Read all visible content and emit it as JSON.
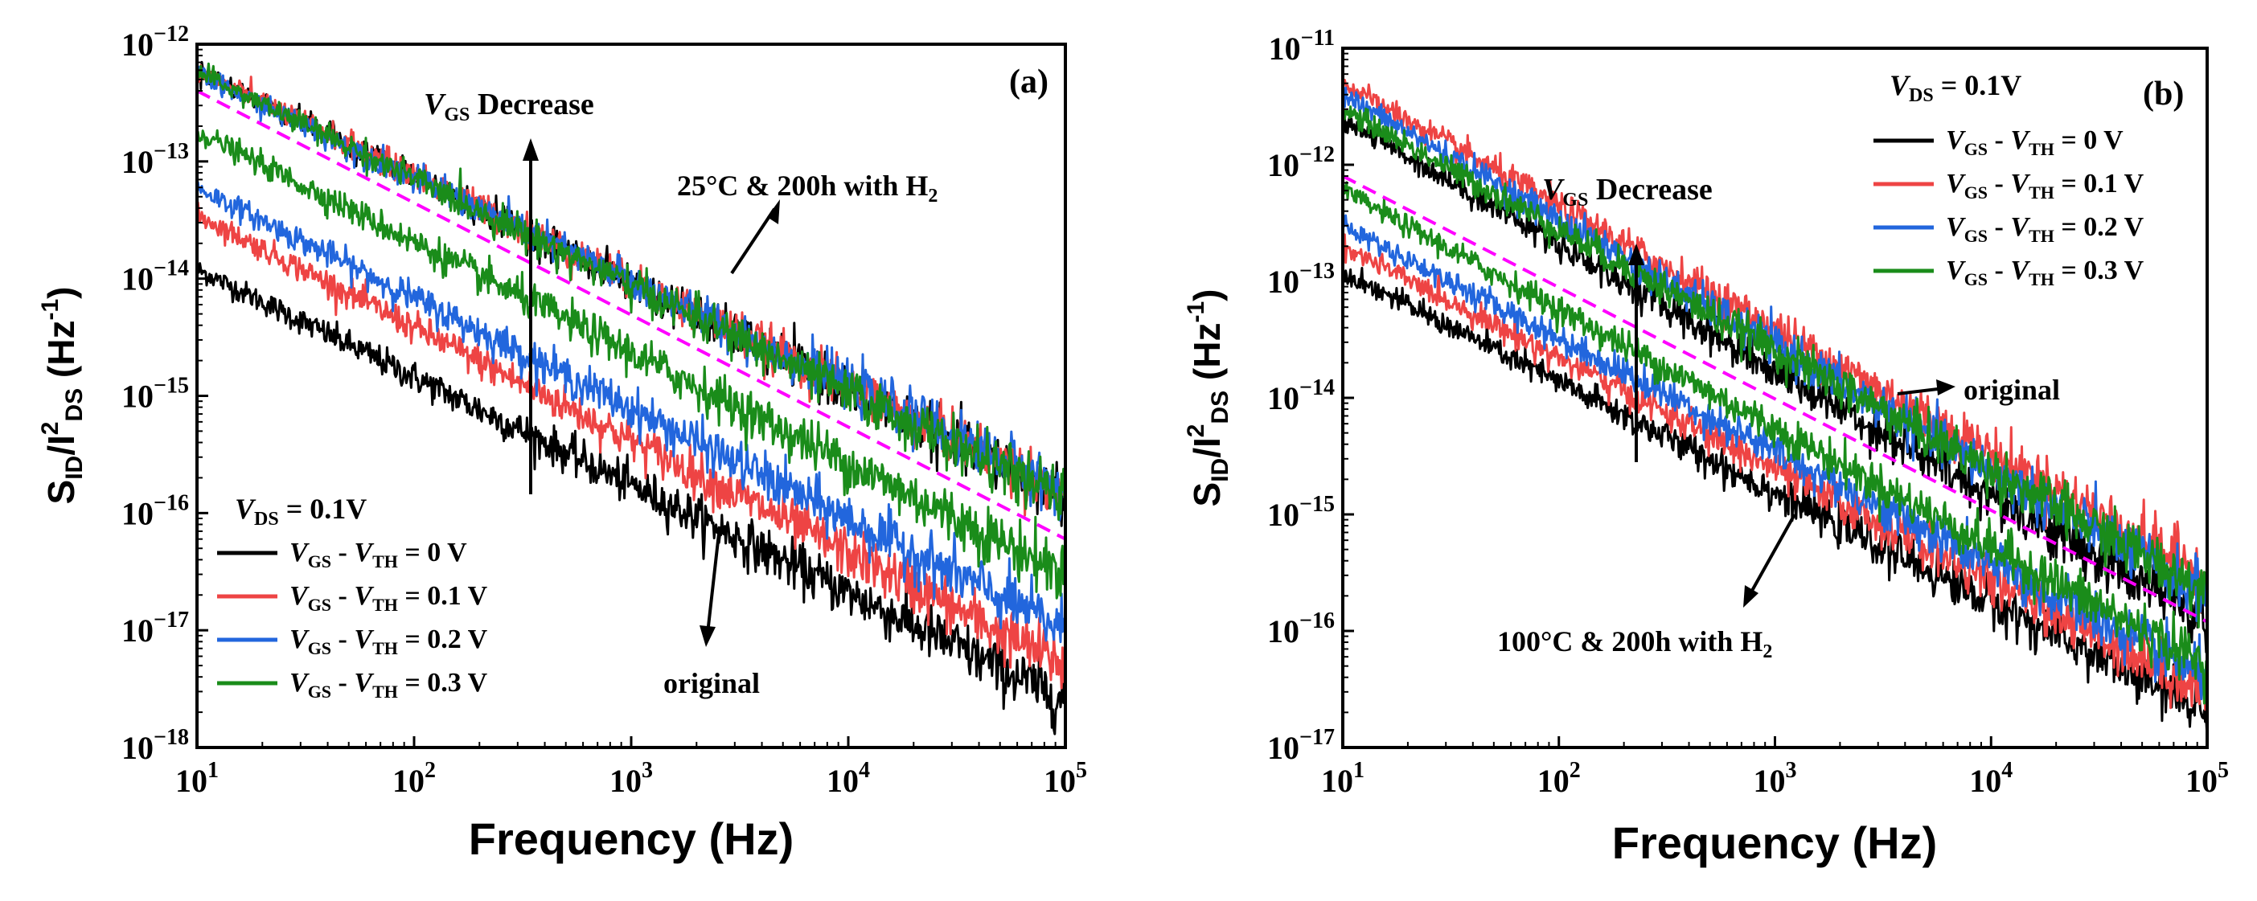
{
  "chart_data": [
    {
      "type": "line",
      "panel_label": "(a)",
      "xlabel": "Frequency (Hz)",
      "ylabel": {
        "main": "S",
        "sub1": "ID",
        "slash": "/I",
        "sup2": "2",
        "sub2": "DS",
        "unit_open": " (Hz",
        "unit_sup": "-1",
        "unit_close": ")"
      },
      "xscale": "log",
      "yscale": "log",
      "xlim": [
        10,
        100000
      ],
      "ylim": [
        1e-18,
        1e-12
      ],
      "xticks": [
        {
          "base": "10",
          "exp": "1",
          "value": 10
        },
        {
          "base": "10",
          "exp": "2",
          "value": 100
        },
        {
          "base": "10",
          "exp": "3",
          "value": 1000
        },
        {
          "base": "10",
          "exp": "4",
          "value": 10000
        },
        {
          "base": "10",
          "exp": "5",
          "value": 100000
        }
      ],
      "yticks": [
        {
          "base": "10",
          "exp": "−18",
          "value": 1e-18
        },
        {
          "base": "10",
          "exp": "−17",
          "value": 1e-17
        },
        {
          "base": "10",
          "exp": "−16",
          "value": 1e-16
        },
        {
          "base": "10",
          "exp": "−15",
          "value": 1e-15
        },
        {
          "base": "10",
          "exp": "−14",
          "value": 1e-14
        },
        {
          "base": "10",
          "exp": "−13",
          "value": 1e-13
        },
        {
          "base": "10",
          "exp": "−12",
          "value": 1e-12
        }
      ],
      "series_original": [
        {
          "name": "VGS - VTH = 0 V",
          "color": "#000000",
          "start": 1.2e-14,
          "end": 2.5e-18
        },
        {
          "name": "VGS - VTH = 0.1 V",
          "color": "#ee4444",
          "start": 3.5e-14,
          "end": 5e-18
        },
        {
          "name": "VGS - VTH = 0.2 V",
          "color": "#2266dd",
          "start": 6e-14,
          "end": 1e-17
        },
        {
          "name": "VGS - VTH = 0.3 V",
          "color": "#1a8c1a",
          "start": 1.8e-13,
          "end": 3e-17
        }
      ],
      "series_stressed": [
        {
          "name": "VGS - VTH = 0 V",
          "color": "#000000",
          "start": 6e-13,
          "end": 1.4e-16
        },
        {
          "name": "VGS - VTH = 0.1 V",
          "color": "#ee4444",
          "start": 6e-13,
          "end": 1.5e-16
        },
        {
          "name": "VGS - VTH = 0.2 V",
          "color": "#2266dd",
          "start": 5.5e-13,
          "end": 1.6e-16
        },
        {
          "name": "VGS - VTH = 0.3 V",
          "color": "#1a8c1a",
          "start": 5.8e-13,
          "end": 1.3e-16
        }
      ],
      "reference_line": {
        "color": "#ff00ff",
        "start": 4e-13,
        "end": 6e-17
      },
      "legend_title": {
        "v": "V",
        "sub": "DS",
        "rest": " = 0.1V"
      },
      "legend": [
        {
          "v1": "V",
          "s1": "GS",
          "mid": " - ",
          "v2": "V",
          "s2": "TH",
          "val": " = 0 V",
          "color": "#000000"
        },
        {
          "v1": "V",
          "s1": "GS",
          "mid": " - ",
          "v2": "V",
          "s2": "TH",
          "val": " = 0.1 V",
          "color": "#ee4444"
        },
        {
          "v1": "V",
          "s1": "GS",
          "mid": " - ",
          "v2": "V",
          "s2": "TH",
          "val": " = 0.2 V",
          "color": "#2266dd"
        },
        {
          "v1": "V",
          "s1": "GS",
          "mid": " - ",
          "v2": "V",
          "s2": "TH",
          "val": " = 0.3 V",
          "color": "#1a8c1a"
        }
      ],
      "annotations": {
        "vgs_decrease": {
          "v": "V",
          "sub": "GS",
          "rest": " Decrease"
        },
        "stress": {
          "text": "25°C & 200h with H",
          "sub": "2"
        },
        "original": "original"
      }
    },
    {
      "type": "line",
      "panel_label": "(b)",
      "xlabel": "Frequency (Hz)",
      "ylabel": {
        "main": "S",
        "sub1": "ID",
        "slash": "/I",
        "sup2": "2",
        "sub2": "DS",
        "unit_open": " (Hz",
        "unit_sup": "-1",
        "unit_close": ")"
      },
      "xscale": "log",
      "yscale": "log",
      "xlim": [
        10,
        100000
      ],
      "ylim": [
        1e-17,
        1e-11
      ],
      "xticks": [
        {
          "base": "10",
          "exp": "1",
          "value": 10
        },
        {
          "base": "10",
          "exp": "2",
          "value": 100
        },
        {
          "base": "10",
          "exp": "3",
          "value": 1000
        },
        {
          "base": "10",
          "exp": "4",
          "value": 10000
        },
        {
          "base": "10",
          "exp": "5",
          "value": 100000
        }
      ],
      "yticks": [
        {
          "base": "10",
          "exp": "−17",
          "value": 1e-17
        },
        {
          "base": "10",
          "exp": "−16",
          "value": 1e-16
        },
        {
          "base": "10",
          "exp": "−15",
          "value": 1e-15
        },
        {
          "base": "10",
          "exp": "−14",
          "value": 1e-14
        },
        {
          "base": "10",
          "exp": "−13",
          "value": 1e-13
        },
        {
          "base": "10",
          "exp": "−12",
          "value": 1e-12
        },
        {
          "base": "10",
          "exp": "−11",
          "value": 1e-11
        }
      ],
      "series_original": [
        {
          "name": "VGS - VTH = 0 V",
          "color": "#000000",
          "start": 2.5e-12,
          "end": 1.2e-16
        },
        {
          "name": "VGS - VTH = 0.1 V",
          "color": "#ee4444",
          "start": 5e-12,
          "end": 3e-16
        },
        {
          "name": "VGS - VTH = 0.2 V",
          "color": "#2266dd",
          "start": 4e-12,
          "end": 2e-16
        },
        {
          "name": "VGS - VTH = 0.3 V",
          "color": "#1a8c1a",
          "start": 3e-12,
          "end": 2.2e-16
        }
      ],
      "series_stressed": [
        {
          "name": "VGS - VTH = 0 V",
          "color": "#000000",
          "start": 1.2e-13,
          "end": 2e-17
        },
        {
          "name": "VGS - VTH = 0.1 V",
          "color": "#ee4444",
          "start": 2e-13,
          "end": 3e-17
        },
        {
          "name": "VGS - VTH = 0.2 V",
          "color": "#2266dd",
          "start": 3e-13,
          "end": 4e-17
        },
        {
          "name": "VGS - VTH = 0.3 V",
          "color": "#1a8c1a",
          "start": 6e-13,
          "end": 5e-17
        }
      ],
      "reference_line": {
        "color": "#ff00ff",
        "start": 8e-13,
        "end": 1.2e-16
      },
      "legend_title": {
        "v": "V",
        "sub": "DS",
        "rest": " = 0.1V"
      },
      "legend": [
        {
          "v1": "V",
          "s1": "GS",
          "mid": " - ",
          "v2": "V",
          "s2": "TH",
          "val": " = 0 V",
          "color": "#000000"
        },
        {
          "v1": "V",
          "s1": "GS",
          "mid": " - ",
          "v2": "V",
          "s2": "TH",
          "val": " = 0.1 V",
          "color": "#ee4444"
        },
        {
          "v1": "V",
          "s1": "GS",
          "mid": " - ",
          "v2": "V",
          "s2": "TH",
          "val": " = 0.2 V",
          "color": "#2266dd"
        },
        {
          "v1": "V",
          "s1": "GS",
          "mid": " - ",
          "v2": "V",
          "s2": "TH",
          "val": " = 0.3 V",
          "color": "#1a8c1a"
        }
      ],
      "annotations": {
        "vgs_decrease": {
          "v": "V",
          "sub": "GS",
          "rest": " Decrease"
        },
        "stress": {
          "text": "100°C & 200h with H",
          "sub": "2"
        },
        "original": "original"
      }
    }
  ]
}
